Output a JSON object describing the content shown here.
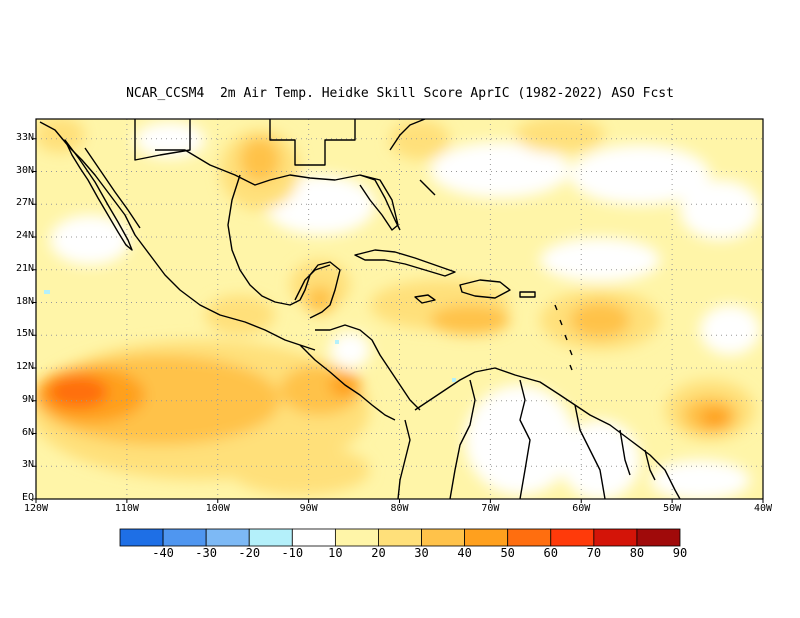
{
  "title": "NCAR_CCSM4  2m Air Temp. Heidke Skill Score AprIC (1982-2022) ASO Fcst",
  "lat_labels": [
    "33N",
    "30N",
    "27N",
    "24N",
    "21N",
    "18N",
    "15N",
    "12N",
    "9N",
    "6N",
    "3N",
    "EQ"
  ],
  "lon_labels": [
    "120W",
    "110W",
    "100W",
    "90W",
    "80W",
    "70W",
    "60W",
    "50W",
    "40W"
  ],
  "colorbar": {
    "labels": [
      "-40",
      "-30",
      "-20",
      "-10",
      "10",
      "20",
      "30",
      "40",
      "50",
      "60",
      "70",
      "80",
      "90"
    ],
    "colors": [
      "#1e6fe6",
      "#4f96f0",
      "#7db9f5",
      "#b4f0fa",
      "#ffffff",
      "#fff5a8",
      "#ffe07a",
      "#ffc24a",
      "#ffa01e",
      "#ff6e0f",
      "#ff3a0a",
      "#d41408",
      "#a00a0a"
    ]
  },
  "colors": {
    "land_line": "#000000",
    "grid": "#999999",
    "frame": "#000000"
  }
}
